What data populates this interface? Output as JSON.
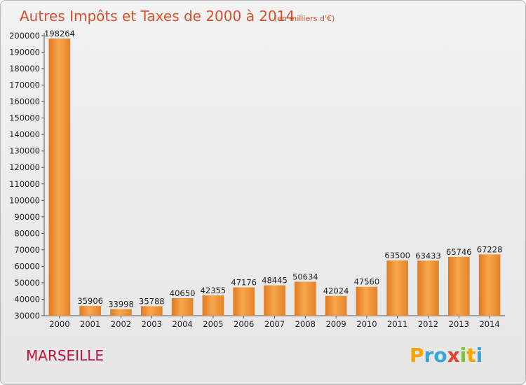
{
  "chart_data": {
    "type": "bar",
    "title": "Autres Impôts et Taxes de 2000 à 2014",
    "subtitle": "(en milliers d'€)",
    "xlabel": "",
    "ylabel": "",
    "categories": [
      "2000",
      "2001",
      "2002",
      "2003",
      "2004",
      "2005",
      "2006",
      "2007",
      "2008",
      "2009",
      "2010",
      "2011",
      "2012",
      "2013",
      "2014"
    ],
    "values": [
      198264,
      35906,
      33998,
      35788,
      40650,
      42355,
      47176,
      48445,
      50634,
      42024,
      47560,
      63500,
      63433,
      65746,
      67228
    ],
    "value_labels": [
      "198264",
      "35906",
      "33998",
      "35788",
      "40650",
      "42355",
      "47176",
      "48445",
      "50634",
      "42024",
      "47560",
      "63500",
      "63433",
      "65746",
      "67228"
    ],
    "ylim": [
      30000,
      200000
    ],
    "yticks": [
      30000,
      40000,
      50000,
      60000,
      70000,
      80000,
      90000,
      100000,
      110000,
      120000,
      130000,
      140000,
      150000,
      160000,
      170000,
      180000,
      190000,
      200000
    ],
    "ytick_labels": [
      "30000",
      "40000",
      "50000",
      "60000",
      "70000",
      "80000",
      "90000",
      "100000",
      "110000",
      "120000",
      "130000",
      "140000",
      "150000",
      "160000",
      "170000",
      "180000",
      "190000",
      "200000"
    ],
    "grid": false,
    "bar_color": "#f39c3d"
  },
  "footer": {
    "city": "MARSEILLE",
    "brand_letters": [
      "P",
      "r",
      "o",
      "x",
      "i",
      "t",
      "i"
    ],
    "brand_colors": [
      "#f5a400",
      "#33a8d8",
      "#33a8d8",
      "#e8402a",
      "#7cc03a",
      "#f5a400",
      "#33a8d8"
    ]
  }
}
